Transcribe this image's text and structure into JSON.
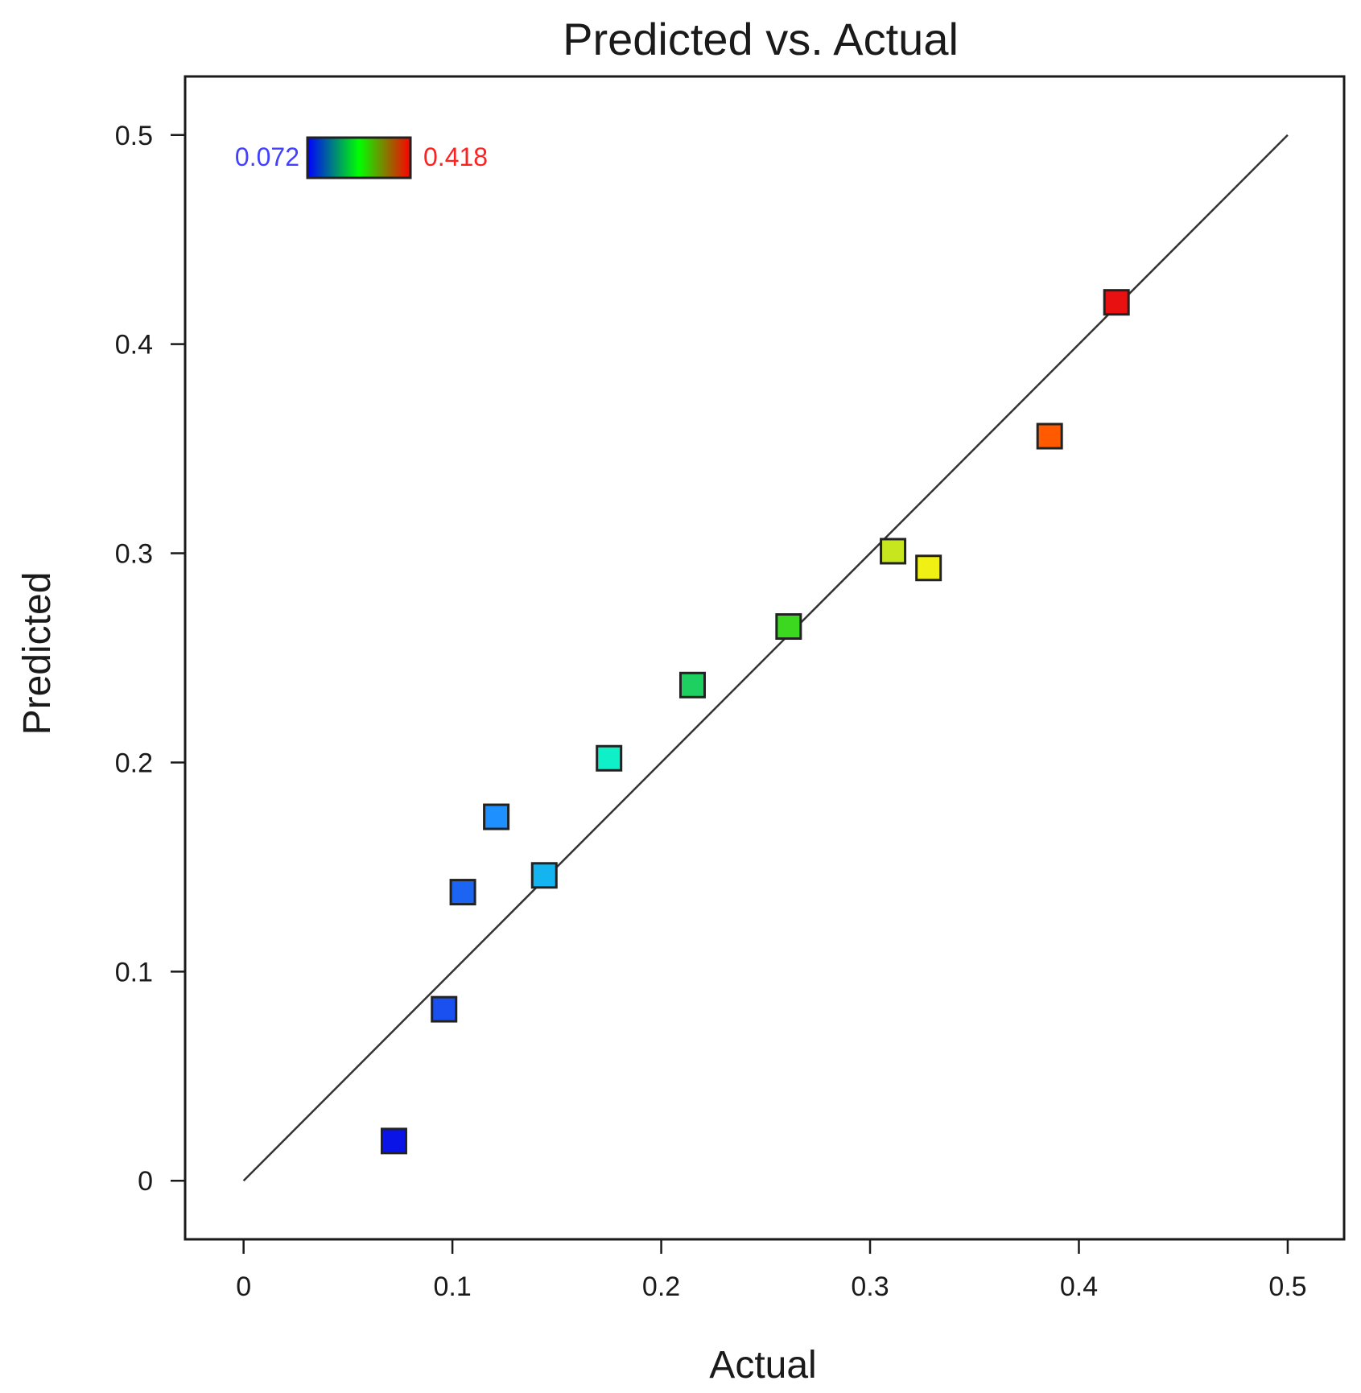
{
  "chart_data": {
    "type": "scatter",
    "title": "Predicted vs. Actual",
    "xlabel": "Actual",
    "ylabel": "Predicted",
    "xlim": [
      -0.028,
      0.527
    ],
    "ylim": [
      -0.028,
      0.528
    ],
    "xticks": [
      0,
      0.1,
      0.2,
      0.3,
      0.4,
      0.5
    ],
    "yticks": [
      0,
      0.1,
      0.2,
      0.3,
      0.4,
      0.5
    ],
    "xtick_labels": [
      "0",
      "0.1",
      "0.2",
      "0.3",
      "0.4",
      "0.5"
    ],
    "ytick_labels": [
      "0",
      "0.1",
      "0.2",
      "0.3",
      "0.4",
      "0.5"
    ],
    "reference_line": {
      "from": [
        0,
        0
      ],
      "to": [
        0.5,
        0.5
      ]
    },
    "color_scale": {
      "min_label": "0.072",
      "max_label": "0.418",
      "min": 0.072,
      "max": 0.418,
      "min_color": "#4040ff",
      "max_color": "#ff2020",
      "stops": [
        "#0000ff",
        "#00ff00",
        "#ff0000"
      ]
    },
    "points": [
      {
        "actual": 0.072,
        "predicted": 0.019,
        "color": "#0a14e6"
      },
      {
        "actual": 0.096,
        "predicted": 0.082,
        "color": "#1a50f0"
      },
      {
        "actual": 0.105,
        "predicted": 0.138,
        "color": "#1c64f2"
      },
      {
        "actual": 0.121,
        "predicted": 0.174,
        "color": "#1e90ff"
      },
      {
        "actual": 0.144,
        "predicted": 0.146,
        "color": "#14b4f0"
      },
      {
        "actual": 0.175,
        "predicted": 0.202,
        "color": "#10f0c8"
      },
      {
        "actual": 0.215,
        "predicted": 0.237,
        "color": "#1ed060"
      },
      {
        "actual": 0.261,
        "predicted": 0.265,
        "color": "#3cd820"
      },
      {
        "actual": 0.311,
        "predicted": 0.301,
        "color": "#c8e61e"
      },
      {
        "actual": 0.328,
        "predicted": 0.293,
        "color": "#f0f014"
      },
      {
        "actual": 0.386,
        "predicted": 0.356,
        "color": "#ff5a00"
      },
      {
        "actual": 0.418,
        "predicted": 0.42,
        "color": "#e81010"
      }
    ]
  }
}
